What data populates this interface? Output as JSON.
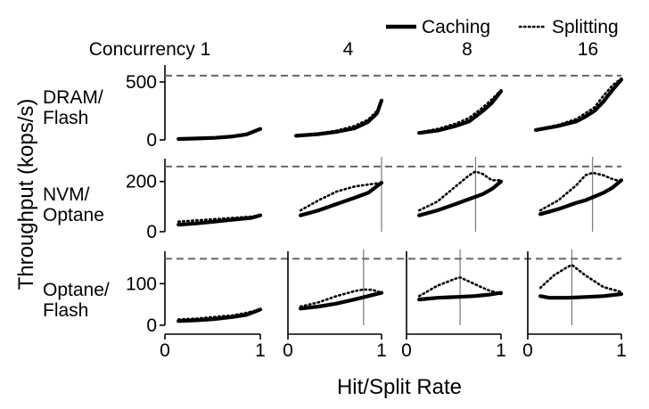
{
  "chart_data": {
    "type": "line",
    "ylabel": "Throughput (kops/s)",
    "xlabel": "Hit/Split Rate",
    "xlim": [
      0,
      1
    ],
    "xticks": [
      "0",
      "1"
    ],
    "legend": {
      "placement": "top-right",
      "entries": [
        {
          "label": "Caching",
          "style": "solid"
        },
        {
          "label": "Splitting",
          "style": "dotted"
        }
      ]
    },
    "columns": [
      {
        "label": "Concurrency 1"
      },
      {
        "label": "4"
      },
      {
        "label": "8"
      },
      {
        "label": "16"
      }
    ],
    "rows": [
      {
        "name_lines": [
          "DRAM/",
          "Flash"
        ],
        "ylim": [
          0,
          600
        ],
        "yticks": [
          {
            "value": 0,
            "label": "0"
          },
          {
            "value": 500,
            "label": "500"
          }
        ],
        "reference_line": 555,
        "panels": [
          {
            "caching": [
              [
                0.1,
                8
              ],
              [
                0.3,
                12
              ],
              [
                0.5,
                18
              ],
              [
                0.7,
                30
              ],
              [
                0.85,
                48
              ],
              [
                1.0,
                95
              ]
            ],
            "splitting": [
              [
                0.1,
                8
              ],
              [
                0.3,
                12
              ],
              [
                0.5,
                18
              ],
              [
                0.7,
                30
              ],
              [
                0.85,
                48
              ],
              [
                1.0,
                95
              ]
            ]
          },
          {
            "caching": [
              [
                0.05,
                35
              ],
              [
                0.3,
                50
              ],
              [
                0.5,
                70
              ],
              [
                0.7,
                100
              ],
              [
                0.85,
                155
              ],
              [
                0.95,
                230
              ],
              [
                1.0,
                340
              ]
            ],
            "splitting": [
              [
                0.05,
                38
              ],
              [
                0.3,
                55
              ],
              [
                0.5,
                80
              ],
              [
                0.7,
                120
              ],
              [
                0.85,
                175
              ],
              [
                0.95,
                250
              ],
              [
                1.0,
                330
              ]
            ]
          },
          {
            "caching": [
              [
                0.1,
                60
              ],
              [
                0.3,
                80
              ],
              [
                0.5,
                120
              ],
              [
                0.65,
                160
              ],
              [
                0.8,
                250
              ],
              [
                0.9,
                320
              ],
              [
                1.0,
                420
              ]
            ],
            "splitting": [
              [
                0.1,
                65
              ],
              [
                0.3,
                95
              ],
              [
                0.5,
                140
              ],
              [
                0.65,
                190
              ],
              [
                0.8,
                280
              ],
              [
                0.9,
                350
              ],
              [
                1.0,
                430
              ]
            ]
          },
          {
            "caching": [
              [
                0.05,
                85
              ],
              [
                0.3,
                120
              ],
              [
                0.5,
                160
              ],
              [
                0.6,
                200
              ],
              [
                0.7,
                250
              ],
              [
                0.8,
                330
              ],
              [
                0.9,
                430
              ],
              [
                1.0,
                520
              ]
            ],
            "splitting": [
              [
                0.05,
                90
              ],
              [
                0.3,
                130
              ],
              [
                0.5,
                180
              ],
              [
                0.6,
                230
              ],
              [
                0.7,
                280
              ],
              [
                0.8,
                380
              ],
              [
                0.9,
                470
              ],
              [
                1.0,
                530
              ]
            ]
          }
        ]
      },
      {
        "name_lines": [
          "NVM/",
          "Optane"
        ],
        "ylim": [
          0,
          270
        ],
        "yticks": [
          {
            "value": 0,
            "label": "0"
          },
          {
            "value": 200,
            "label": "200"
          }
        ],
        "reference_line": 260,
        "panels": [
          {
            "caching": [
              [
                0.1,
                28
              ],
              [
                0.3,
                33
              ],
              [
                0.5,
                40
              ],
              [
                0.7,
                48
              ],
              [
                0.9,
                55
              ],
              [
                1.0,
                65
              ]
            ],
            "splitting": [
              [
                0.1,
                40
              ],
              [
                0.3,
                45
              ],
              [
                0.5,
                50
              ],
              [
                0.7,
                55
              ],
              [
                0.9,
                60
              ],
              [
                1.0,
                65
              ]
            ]
          },
          {
            "caching": [
              [
                0.1,
                65
              ],
              [
                0.3,
                85
              ],
              [
                0.5,
                110
              ],
              [
                0.7,
                135
              ],
              [
                0.85,
                155
              ],
              [
                1.0,
                195
              ]
            ],
            "splitting": [
              [
                0.1,
                85
              ],
              [
                0.3,
                125
              ],
              [
                0.5,
                160
              ],
              [
                0.7,
                180
              ],
              [
                0.85,
                188
              ],
              [
                1.0,
                195
              ]
            ]
          },
          {
            "caching": [
              [
                0.1,
                65
              ],
              [
                0.3,
                85
              ],
              [
                0.5,
                110
              ],
              [
                0.65,
                130
              ],
              [
                0.8,
                150
              ],
              [
                0.9,
                170
              ],
              [
                1.0,
                200
              ]
            ],
            "splitting": [
              [
                0.1,
                85
              ],
              [
                0.3,
                120
              ],
              [
                0.5,
                180
              ],
              [
                0.65,
                225
              ],
              [
                0.72,
                240
              ],
              [
                0.8,
                230
              ],
              [
                0.9,
                205
              ],
              [
                1.0,
                205
              ]
            ]
          },
          {
            "caching": [
              [
                0.1,
                70
              ],
              [
                0.3,
                90
              ],
              [
                0.5,
                115
              ],
              [
                0.6,
                125
              ],
              [
                0.8,
                155
              ],
              [
                0.9,
                175
              ],
              [
                1.0,
                205
              ]
            ],
            "splitting": [
              [
                0.1,
                85
              ],
              [
                0.3,
                125
              ],
              [
                0.5,
                185
              ],
              [
                0.6,
                225
              ],
              [
                0.68,
                235
              ],
              [
                0.8,
                225
              ],
              [
                0.9,
                210
              ],
              [
                1.0,
                200
              ]
            ]
          }
        ]
      },
      {
        "name_lines": [
          "Optane/",
          "Flash"
        ],
        "ylim": [
          0,
          165
        ],
        "yticks": [
          {
            "value": 0,
            "label": "0"
          },
          {
            "value": 100,
            "label": "100"
          }
        ],
        "reference_line": 160,
        "panels": [
          {
            "caching": [
              [
                0.1,
                10
              ],
              [
                0.3,
                12
              ],
              [
                0.5,
                15
              ],
              [
                0.7,
                20
              ],
              [
                0.85,
                25
              ],
              [
                1.0,
                38
              ]
            ],
            "splitting": [
              [
                0.1,
                14
              ],
              [
                0.3,
                16
              ],
              [
                0.5,
                20
              ],
              [
                0.7,
                24
              ],
              [
                0.85,
                30
              ],
              [
                1.0,
                38
              ]
            ]
          },
          {
            "caching": [
              [
                0.1,
                40
              ],
              [
                0.3,
                45
              ],
              [
                0.5,
                52
              ],
              [
                0.7,
                62
              ],
              [
                0.85,
                70
              ],
              [
                1.0,
                78
              ]
            ],
            "splitting": [
              [
                0.1,
                45
              ],
              [
                0.3,
                55
              ],
              [
                0.5,
                70
              ],
              [
                0.7,
                82
              ],
              [
                0.8,
                86
              ],
              [
                0.9,
                85
              ],
              [
                1.0,
                78
              ]
            ]
          },
          {
            "caching": [
              [
                0.1,
                62
              ],
              [
                0.3,
                66
              ],
              [
                0.5,
                68
              ],
              [
                0.7,
                70
              ],
              [
                0.85,
                73
              ],
              [
                1.0,
                78
              ]
            ],
            "splitting": [
              [
                0.1,
                70
              ],
              [
                0.3,
                95
              ],
              [
                0.5,
                112
              ],
              [
                0.55,
                115
              ],
              [
                0.7,
                100
              ],
              [
                0.85,
                85
              ],
              [
                1.0,
                75
              ]
            ]
          },
          {
            "caching": [
              [
                0.1,
                70
              ],
              [
                0.2,
                66
              ],
              [
                0.4,
                66
              ],
              [
                0.6,
                68
              ],
              [
                0.8,
                70
              ],
              [
                1.0,
                75
              ]
            ],
            "splitting": [
              [
                0.1,
                90
              ],
              [
                0.25,
                120
              ],
              [
                0.4,
                140
              ],
              [
                0.45,
                145
              ],
              [
                0.6,
                120
              ],
              [
                0.8,
                92
              ],
              [
                1.0,
                80
              ]
            ]
          }
        ]
      }
    ]
  }
}
